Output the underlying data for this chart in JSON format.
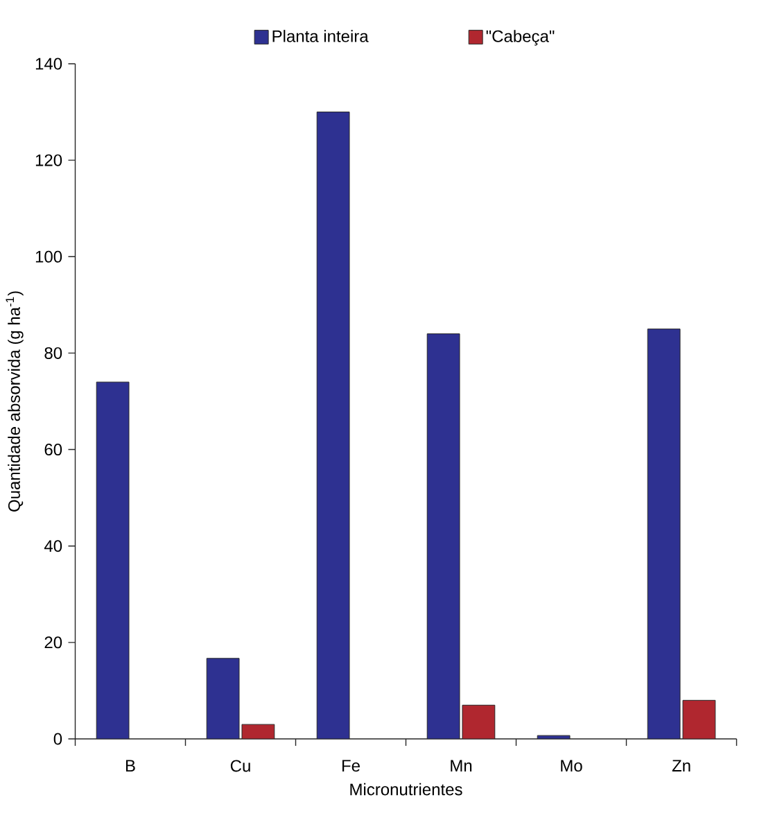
{
  "chart_data": {
    "type": "bar",
    "xlabel": "Micronutrientes",
    "ylabel": "Quantidade absorvida (g ha$^{-1}$)",
    "categories": [
      "B",
      "Cu",
      "Fe",
      "Mn",
      "Mo",
      "Zn"
    ],
    "series": [
      {
        "name": "Planta inteira",
        "color": "#2e3191",
        "values": [
          74,
          16.7,
          130,
          84,
          0.7,
          85
        ]
      },
      {
        "name": "\"Cabeça\"",
        "color": "#b0272f",
        "values": [
          null,
          3,
          null,
          7,
          null,
          8
        ]
      }
    ],
    "ylim": [
      0,
      140
    ],
    "yticks": [
      0,
      20,
      40,
      60,
      80,
      100,
      120,
      140
    ],
    "legend": "top"
  }
}
